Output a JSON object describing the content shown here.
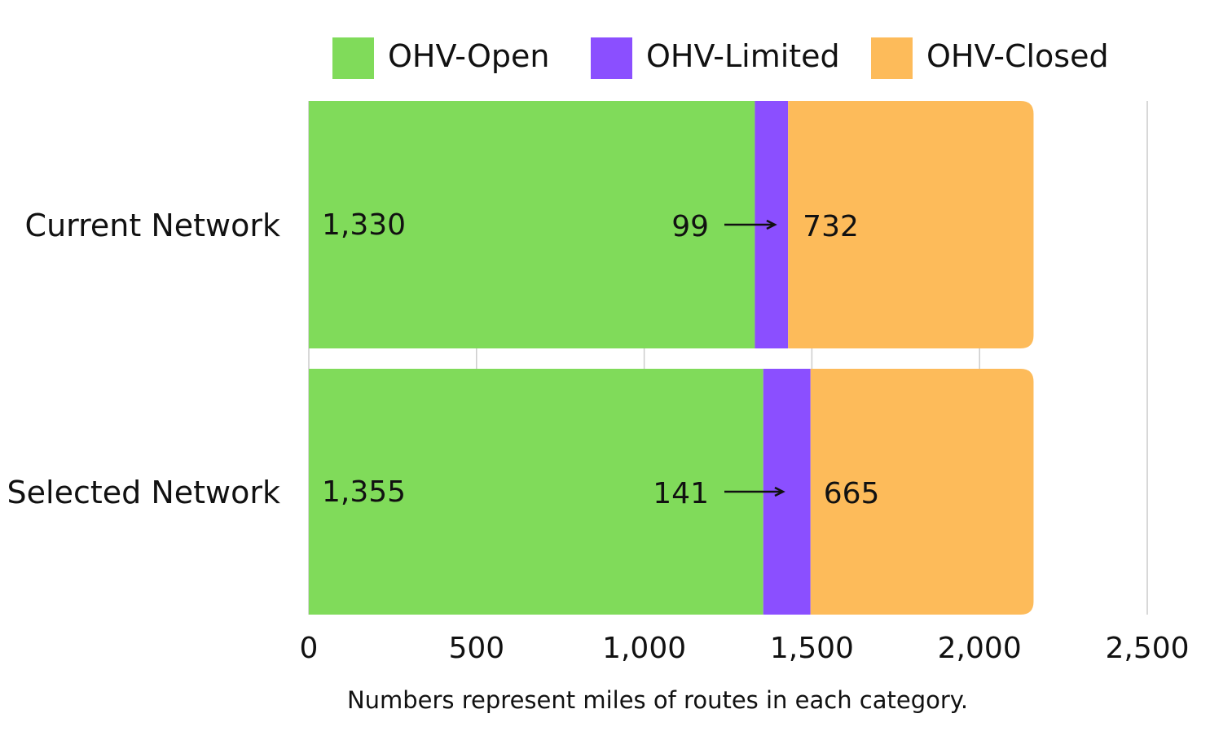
{
  "chart_data": {
    "type": "bar",
    "orientation": "horizontal",
    "stacked": true,
    "categories": [
      "Current Network",
      "Selected Network"
    ],
    "series": [
      {
        "name": "OHV-Open",
        "values": [
          1330,
          1355
        ],
        "labels": [
          "1,330",
          "1,355"
        ],
        "color": "#80db5a"
      },
      {
        "name": "OHV-Limited",
        "values": [
          99,
          141
        ],
        "labels": [
          "99",
          "141"
        ],
        "color": "#8b4fff"
      },
      {
        "name": "OHV-Closed",
        "values": [
          732,
          665
        ],
        "labels": [
          "732",
          "665"
        ],
        "color": "#fdbb5a"
      }
    ],
    "xlim": [
      0,
      2500
    ],
    "xticks": [
      0,
      500,
      1000,
      1500,
      2000,
      2500
    ],
    "xtick_labels": [
      "0",
      "500",
      "1,000",
      "1,500",
      "2,000",
      "2,500"
    ],
    "caption": "Numbers represent miles of routes in each category.",
    "legend_position": "top",
    "grid": true
  }
}
